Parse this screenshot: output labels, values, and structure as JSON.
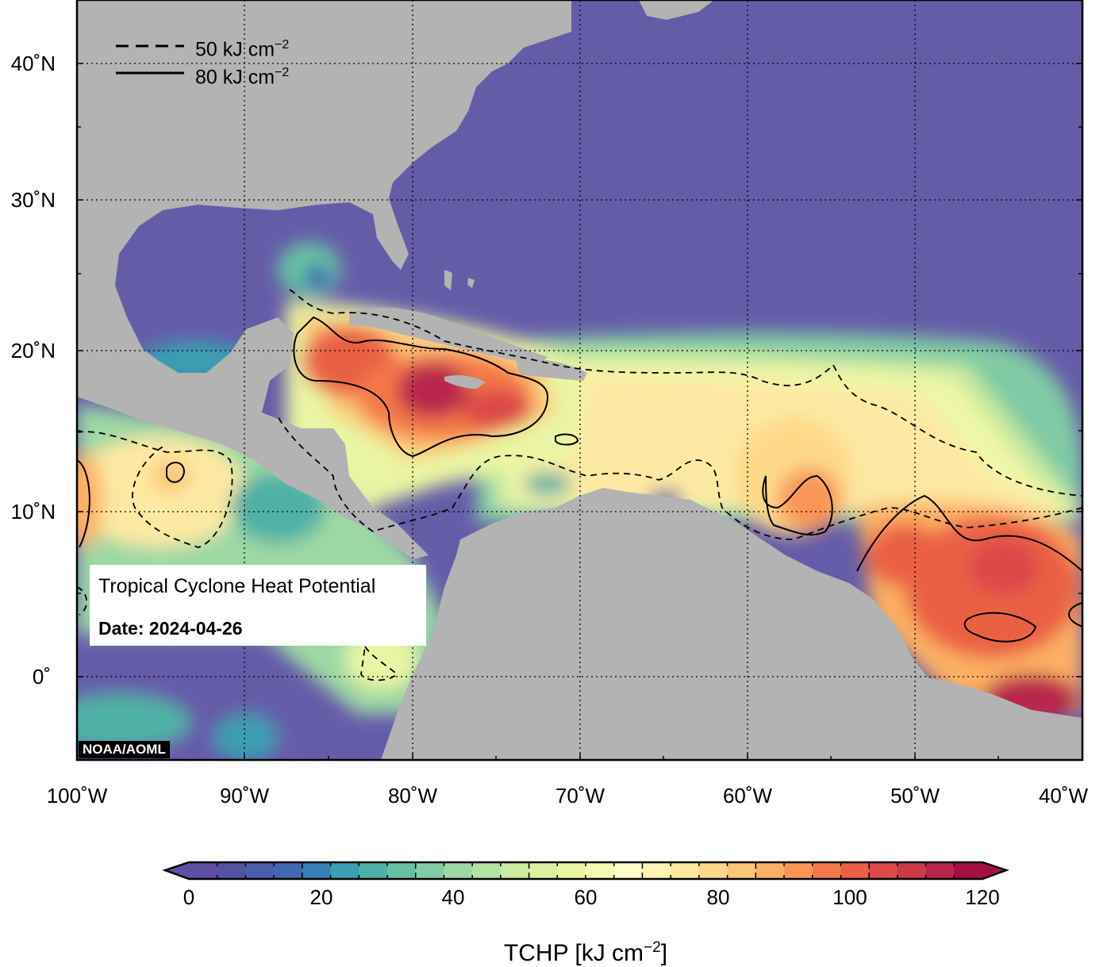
{
  "map": {
    "title": "Tropical Cyclone Heat Potential",
    "date_label": "Date: 2024-04-26",
    "credit": "NOAA/AOML",
    "extent": {
      "lon": [
        -100,
        -40
      ],
      "lat": [
        -5,
        44
      ]
    },
    "lat_labels": [
      "40˚N",
      "30˚N",
      "20˚N",
      "10˚N",
      "0˚"
    ],
    "lon_labels": [
      "100˚W",
      "90˚W",
      "80˚W",
      "70˚W",
      "60˚W",
      "50˚W",
      "40˚W"
    ],
    "land_color": "#b3b3b3",
    "grid_style": "dotted"
  },
  "legend": {
    "position": "top-left",
    "items": [
      {
        "style": "dashed",
        "value_text": "50 kJ cm",
        "exponent": "−2"
      },
      {
        "style": "solid",
        "value_text": "80 kJ cm",
        "exponent": "−2"
      }
    ]
  },
  "colorbar": {
    "ticks": [
      "0",
      "20",
      "40",
      "60",
      "80",
      "100",
      "120"
    ],
    "range": [
      0,
      120
    ],
    "title_text": "TCHP [kJ cm",
    "title_exp": "−2",
    "title_close": "]",
    "colors": [
      "#5e4fa2",
      "#55539f",
      "#4c5ea9",
      "#4169b0",
      "#3781b7",
      "#3a9fb2",
      "#4fb1a5",
      "#66c1a3",
      "#82cca5",
      "#9dd8a4",
      "#b4e2a1",
      "#cbeba0",
      "#dcf0a0",
      "#e9f5a3",
      "#f5fab0",
      "#fefec6",
      "#fef5b2",
      "#fee8a0",
      "#fed98a",
      "#fdc675",
      "#fcb063",
      "#f99656",
      "#f4794a",
      "#ea6045",
      "#db4a47",
      "#ca3a4a",
      "#b8264b",
      "#a50f44"
    ]
  }
}
